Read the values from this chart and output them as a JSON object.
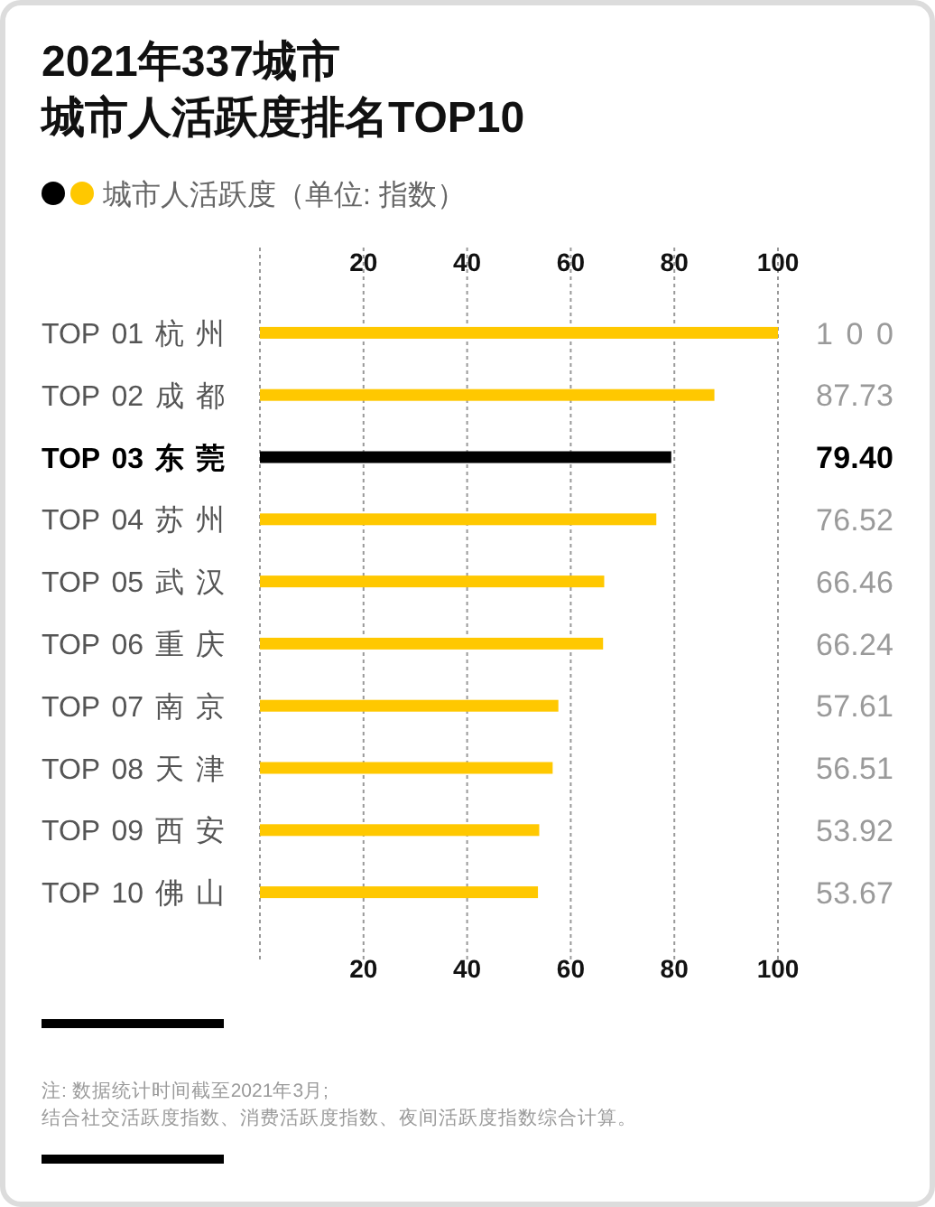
{
  "chart_data": {
    "type": "bar",
    "orientation": "horizontal",
    "title": "2021年337城市",
    "subtitle": "城市人活跃度排名TOP10",
    "categories": [
      "TOP 01 杭 州",
      "TOP 02 成 都",
      "TOP 03 东 莞",
      "TOP 04 苏 州",
      "TOP 05 武 汉",
      "TOP 06 重 庆",
      "TOP 07 南 京",
      "TOP 08 天 津",
      "TOP 09 西 安",
      "TOP 10 佛 山"
    ],
    "series": [
      {
        "name": "城市人活跃度（单位: 指数）",
        "values": [
          100,
          87.73,
          79.4,
          76.52,
          66.46,
          66.24,
          57.61,
          56.51,
          53.92,
          53.67
        ],
        "colors": [
          "#ffc800",
          "#ffc800",
          "#000000",
          "#ffc800",
          "#ffc800",
          "#ffc800",
          "#ffc800",
          "#ffc800",
          "#ffc800",
          "#ffc800"
        ],
        "value_labels": [
          "100",
          "87.73",
          "79.40",
          "76.52",
          "66.46",
          "66.24",
          "57.61",
          "56.51",
          "53.92",
          "53.67"
        ]
      }
    ],
    "xlim": [
      0,
      100
    ],
    "xticks": [
      {
        "value": 0,
        "label": null
      },
      20,
      40,
      60,
      80,
      100
    ],
    "x2lim": [
      0,
      100
    ],
    "x2ticks": [
      20,
      40,
      60,
      80,
      100
    ],
    "grid": "x",
    "legend": "top left",
    "annotations": [
      "注: 数据统计时间截至2021年3月;",
      "结合社交活跃度指数、消费活跃度指数、夜间活跃度指数综合计算。"
    ]
  }
}
